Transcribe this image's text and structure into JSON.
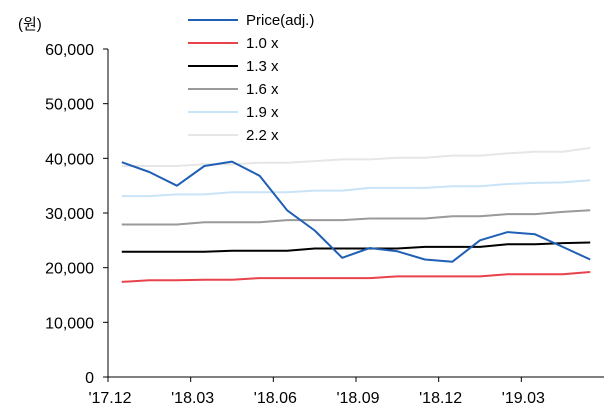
{
  "chart_data": {
    "type": "line",
    "unit_label": "(원)",
    "ylim": [
      0,
      60000
    ],
    "y_ticks": [
      0,
      10000,
      20000,
      30000,
      40000,
      50000,
      60000
    ],
    "y_tick_labels": [
      "0",
      "10,000",
      "20,000",
      "30,000",
      "40,000",
      "50,000",
      "60,000"
    ],
    "x_tick_labels": [
      "'17.12",
      "'18.03",
      "'18.06",
      "'18.09",
      "'18.12",
      "'19.03"
    ],
    "x": [
      "'17.12",
      "'18.01",
      "'18.02",
      "'18.03",
      "'18.04",
      "'18.05",
      "'18.06",
      "'18.07",
      "'18.08",
      "'18.09",
      "'18.10",
      "'18.11",
      "'18.12",
      "'19.01",
      "'19.02",
      "'19.03",
      "'19.04",
      "'19.05"
    ],
    "legend_position": "top",
    "grid": false,
    "series": [
      {
        "name": "Price(adj.)",
        "color": "#1f5fb5",
        "values": [
          39300,
          37500,
          35000,
          38600,
          39400,
          36800,
          30500,
          26800,
          21800,
          23600,
          23000,
          21500,
          21100,
          25000,
          26500,
          26100,
          23800,
          21500
        ]
      },
      {
        "name": "1.0 x",
        "color": "#e8434b",
        "values": [
          17400,
          17700,
          17700,
          17800,
          17800,
          18100,
          18100,
          18100,
          18100,
          18100,
          18400,
          18400,
          18400,
          18400,
          18800,
          18800,
          18800,
          19200
        ]
      },
      {
        "name": "1.3 x",
        "color": "#000000",
        "values": [
          22900,
          22900,
          22900,
          22900,
          23100,
          23100,
          23100,
          23500,
          23500,
          23500,
          23500,
          23800,
          23800,
          23800,
          24300,
          24300,
          24500,
          24600
        ]
      },
      {
        "name": "1.6 x",
        "color": "#9a9a9a",
        "values": [
          27900,
          27900,
          27900,
          28300,
          28300,
          28300,
          28700,
          28700,
          28700,
          29000,
          29000,
          29000,
          29400,
          29400,
          29800,
          29800,
          30200,
          30500
        ]
      },
      {
        "name": "1.9 x",
        "color": "#c9e3f7",
        "values": [
          33100,
          33100,
          33400,
          33400,
          33800,
          33800,
          33800,
          34100,
          34100,
          34600,
          34600,
          34600,
          34900,
          34900,
          35300,
          35500,
          35600,
          36000
        ]
      },
      {
        "name": "2.2 x",
        "color": "#e6e6e6",
        "values": [
          38600,
          38600,
          38600,
          38900,
          38900,
          39200,
          39200,
          39500,
          39800,
          39800,
          40100,
          40100,
          40500,
          40500,
          40900,
          41200,
          41200,
          41900
        ]
      }
    ]
  }
}
